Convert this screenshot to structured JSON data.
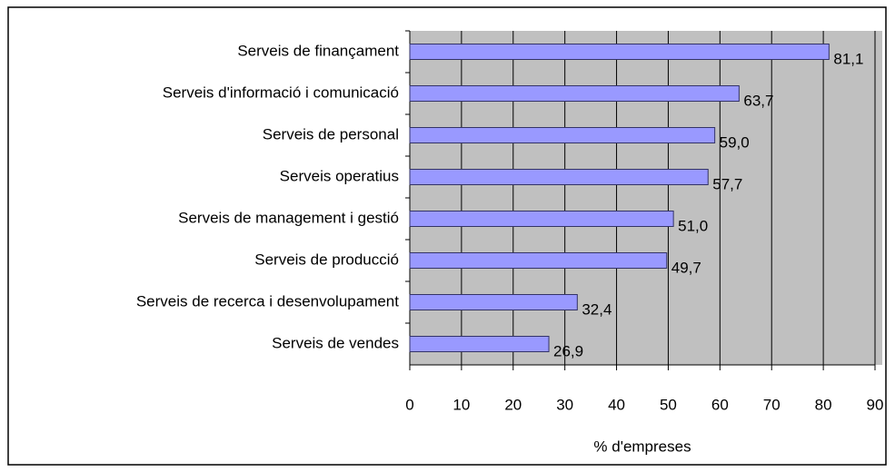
{
  "chart_data": {
    "type": "bar",
    "orientation": "horizontal",
    "categories": [
      "Serveis de finançament",
      "Serveis d'informació i comunicació",
      "Serveis de personal",
      "Serveis operatius",
      "Serveis de management i gestió",
      "Serveis de producció",
      "Serveis de recerca i desenvolupament",
      "Serveis de vendes"
    ],
    "values": [
      81.1,
      63.7,
      59.0,
      57.7,
      51.0,
      49.7,
      32.4,
      26.9
    ],
    "value_labels": [
      "81,1",
      "63,7",
      "59,0",
      "57,7",
      "51,0",
      "49,7",
      "32,4",
      "26,9"
    ],
    "color": "#9999ff",
    "xlabel": "% d'empreses",
    "xlim": [
      0,
      90
    ],
    "xticks": [
      0,
      10,
      20,
      30,
      40,
      50,
      60,
      70,
      80,
      90
    ],
    "grid": true
  }
}
